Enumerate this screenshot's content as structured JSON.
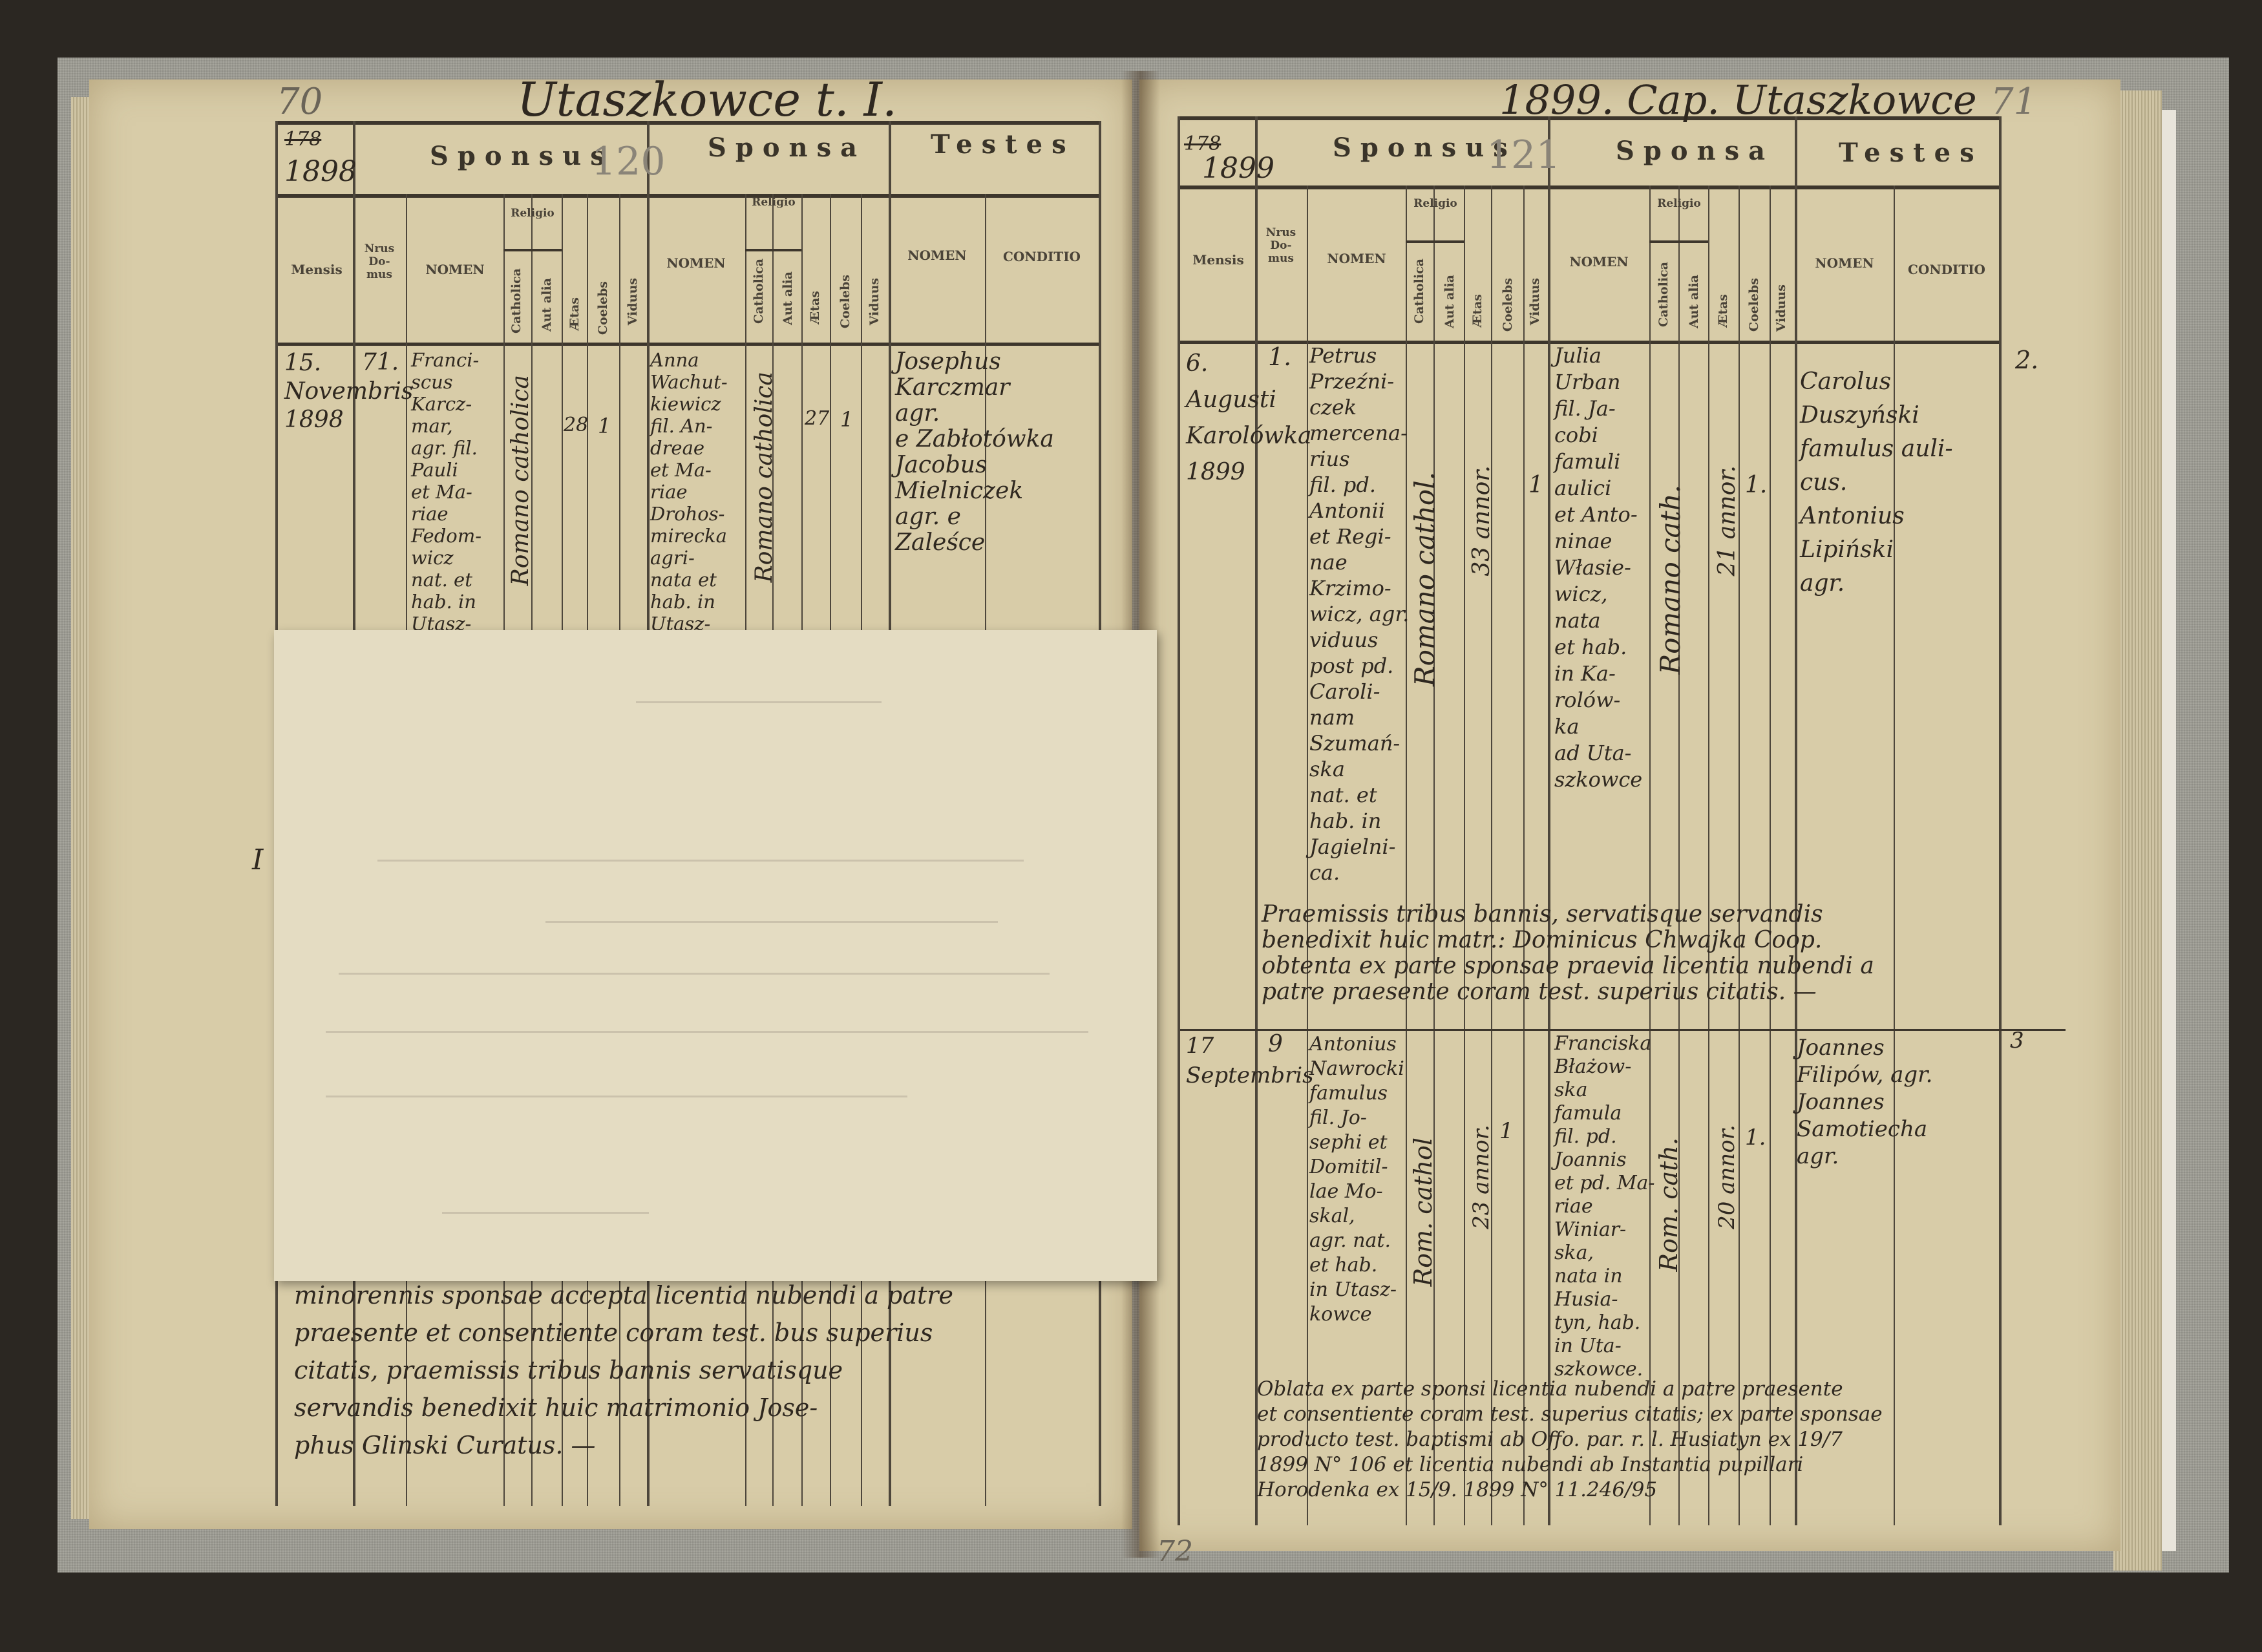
{
  "left_page": {
    "page_number": "70",
    "running_title": "Utaszkowce t. I.",
    "year_struck": "178",
    "year": "1898",
    "pencil_number": "120",
    "section_headers": {
      "sponsus": "Sponsus",
      "sponsa": "Sponsa",
      "testes": "Testes"
    },
    "columns": {
      "mensis": "Mensis",
      "numerus_domus": "Nrus\nDo-\nmus",
      "nomen": "NOMEN",
      "religio": "Religio",
      "catholica": "Catholica",
      "aut_alia": "Aut alia",
      "aetas": "Ætas",
      "coelebs": "Coelebs",
      "viduus": "Viduus",
      "conditio": "CONDITIO"
    },
    "entry": {
      "mensis": "15.\nNovembris\n1898",
      "numerus": "71.",
      "sponsus_nomen": "Franci-\nscus\nKarcz-\nmar,\nagr. fil.\nPauli\net Ma-\nriae\nFedom-\nwicz\nnat. et\nhab. in\nUtasz-",
      "sponsus_religio": "Romano catholica",
      "sponsus_aetas": "28",
      "sponsus_coelebs": "1",
      "sponsa_nomen": "Anna\nWachut-\nkiewicz\nfil. An-\ndreae\net Ma-\nriae\nDrohos-\nmirecka\nagri-\nnata et\nhab. in\nUtasz-",
      "sponsa_religio": "Romano catholica",
      "sponsa_aetas": "27",
      "sponsa_coelebs": "1",
      "testes": "Josephus\nKarczmar\n      agr.\ne Zabłotówka\nJacobus\nMielniczek\nagr.   e\nZaleśce"
    },
    "margin_mark": "I",
    "closing_note": "minorennis sponsae accepta licentia nubendi a patre\npraesente et consentiente coram test. bus superius\ncitatis, praemissis tribus bannis servatisque\nservandis benedixit huic matrimonio Jose-\nphus Glinski Curatus. —"
  },
  "right_page": {
    "page_number": "71",
    "running_title": "1899. Cap. Utaszkowce",
    "year_struck": "178",
    "year": "1899",
    "pencil_number": "121",
    "footer_page_number": "72",
    "section_headers": {
      "sponsus": "Sponsus",
      "sponsa": "Sponsa",
      "testes": "Testes"
    },
    "columns": {
      "mensis": "Mensis",
      "numerus_domus": "Nrus\nDo-\nmus",
      "nomen": "NOMEN",
      "religio": "Religio",
      "catholica": "Catholica",
      "aut_alia": "Aut alia",
      "aetas": "Ætas",
      "coelebs": "Coelebs",
      "viduus": "Viduus",
      "conditio": "CONDITIO"
    },
    "entries": [
      {
        "margin_number": "2.",
        "mensis": "6.\nAugusti\nKarolówka\n1899",
        "numerus": "1.",
        "sponsus_nomen": "Petrus\nPrzeźni-\nczek\nmercena-\nrius\nfil. pd.\nAntonii\net Regi-\nnae\nKrzimo-\nwicz, agr.\nviduus\npost pd.\nCaroli-\nnam\nSzumań-\nska\nnat. et\nhab. in\nJagielni-\nca.",
        "sponsus_religio": "Romano cathol.",
        "sponsus_aetas": "33 annor.",
        "sponsus_status": "1",
        "sponsa_nomen": "Julia\nUrban\nfil. Ja-\ncobi\nfamuli\naulici\net Anto-\nninae\nWłasie-\nwicz,\nnata\net hab.\nin Ka-\nrolów-\nka\nad Uta-\nszkowce",
        "sponsa_religio": "Romano cath.",
        "sponsa_aetas": "21 annor.",
        "sponsa_coelebs": "1.",
        "testes": "Carolus\nDuszyński\nfamulus auli-\n   cus.\n  Antonius\n  Lipiński\n       agr.",
        "note": "Praemissis tribus bannis, servatisque servandis\nbenedixit huic matr.: Dominicus Chwajka Coop.\nobtenta ex parte sponsae praevia licentia nubendi a\npatre praesente coram test. superius citatis. —"
      },
      {
        "margin_number": "3",
        "mensis": "17\nSeptembris",
        "numerus": "9",
        "sponsus_nomen": "Antonius\nNawrocki\nfamulus\nfil. Jo-\nsephi et\nDomitil-\nlae Mo-\nskal,\nagr. nat.\net hab.\nin Utasz-\nkowce",
        "sponsus_religio": "Rom. cathol",
        "sponsus_aetas": "23 annor.",
        "sponsus_coelebs": "1",
        "sponsa_nomen": "Franciska\nBłażow-\nska\nfamula\nfil. pd.\nJoannis\net pd. Ma-\nriae\nWiniar-\nska,\nnata in\nHusia-\ntyn, hab.\nin Uta-\nszkowce.",
        "sponsa_religio": "Rom. cath.",
        "sponsa_aetas": "20 annor.",
        "sponsa_coelebs": "1.",
        "testes": "Joannes\nFilipów, agr.\nJoannes\nSamotiecha\n          agr.",
        "note": "Oblata ex parte sponsi licentia nubendi a patre praesente\net consentiente coram test. superius citatis; ex parte sponsae\nproducto test. baptismi ab Offo. par. r. l. Husiatyn ex 19/7\n1899 N° 106 et licentia nubendi ab Instantia pupillari\nHorodenka ex 15/9. 1899 N° 11.246/95"
      }
    ]
  }
}
